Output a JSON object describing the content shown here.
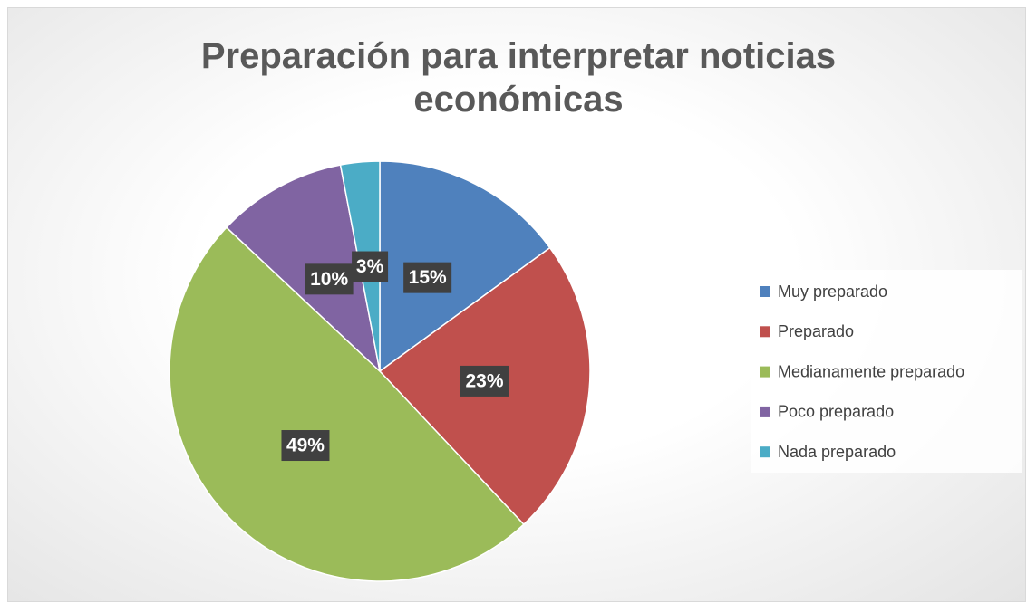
{
  "chart_data": {
    "type": "pie",
    "title": "Preparación para interpretar noticias económicas",
    "categories": [
      "Muy preparado",
      "Preparado",
      "Medianamente preparado",
      "Poco preparado",
      "Nada preparado"
    ],
    "values": [
      15,
      23,
      49,
      10,
      3
    ],
    "value_labels": [
      "15%",
      "23%",
      "49%",
      "10%",
      "3%"
    ],
    "colors": [
      "#4f81bd",
      "#c0504d",
      "#9bbb59",
      "#8064a2",
      "#4bacc6"
    ],
    "legend": "right"
  }
}
